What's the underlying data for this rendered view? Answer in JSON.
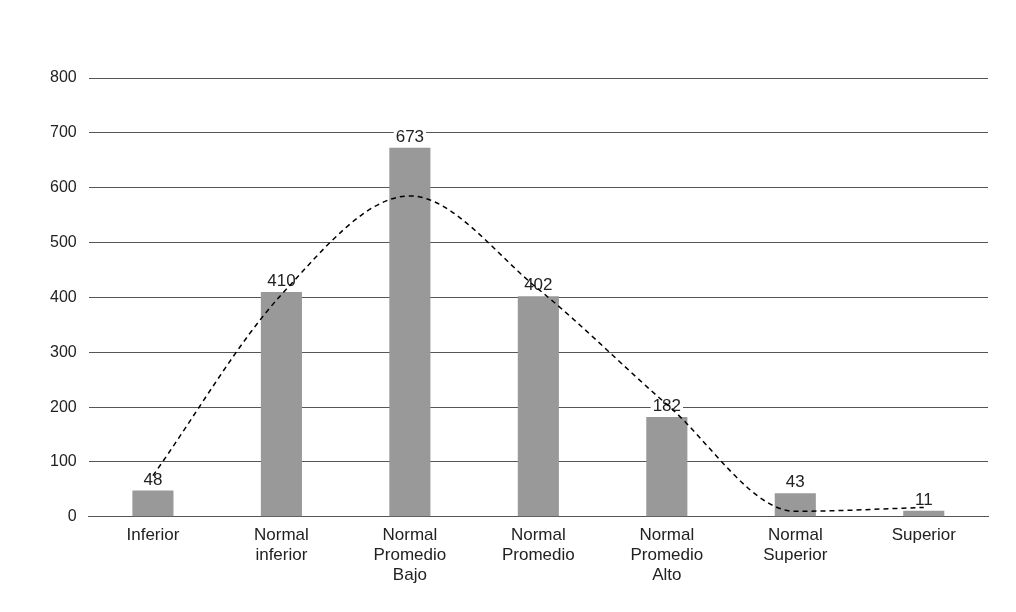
{
  "chart_data": {
    "type": "bar",
    "categories": [
      "Inferior",
      "Normal inferior",
      "Normal Promedio Bajo",
      "Normal Promedio",
      "Normal Promedio Alto",
      "Normal Superior",
      "Superior"
    ],
    "series": [
      {
        "color": "#999999",
        "values": [
          48,
          410,
          673,
          402,
          182,
          43,
          11
        ],
        "value_labels": [
          "48",
          "410",
          "673",
          "402",
          "182",
          "43",
          "11"
        ]
      },
      {
        "type": "line",
        "values": [
          75,
          405,
          585,
          415,
          205,
          10,
          17
        ],
        "color": "#000000",
        "line_style": "dashed",
        "marker": "none"
      }
    ],
    "ylim": [
      0,
      800
    ],
    "yticks": [
      0,
      100,
      200,
      300,
      400,
      500,
      600,
      700,
      800
    ],
    "grid": "y"
  }
}
